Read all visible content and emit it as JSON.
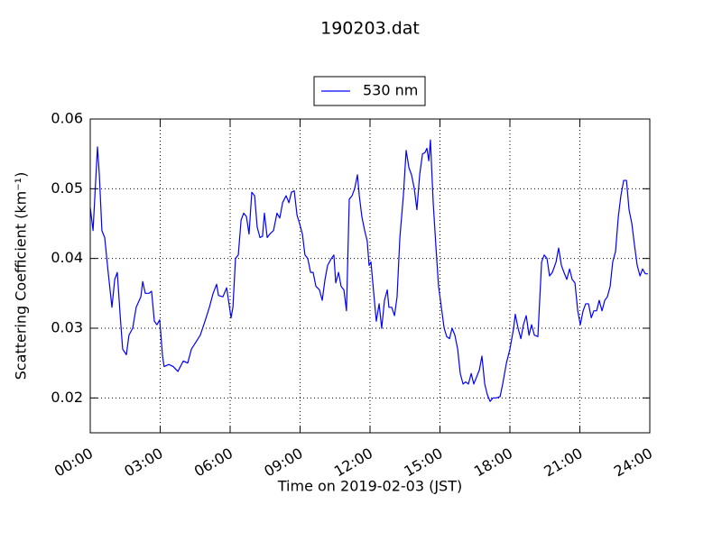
{
  "chart_data": {
    "type": "line",
    "title": "190203.dat",
    "x_label": "Time on 2019-02-03 (JST)",
    "y_label": "Scattering Coefficient (km⁻¹)",
    "x": [
      0,
      0.12,
      0.31,
      0.39,
      0.5,
      0.62,
      0.77,
      0.93,
      1.05,
      1.16,
      1.28,
      1.39,
      1.55,
      1.66,
      1.82,
      1.97,
      2.17,
      2.25,
      2.36,
      2.52,
      2.63,
      2.75,
      2.86,
      2.98,
      3.1,
      3.17,
      3.37,
      3.56,
      3.76,
      3.99,
      4.18,
      4.34,
      4.53,
      4.72,
      4.92,
      5.11,
      5.27,
      5.42,
      5.5,
      5.69,
      5.85,
      6.04,
      6.12,
      6.23,
      6.35,
      6.47,
      6.58,
      6.7,
      6.81,
      6.93,
      7.05,
      7.16,
      7.28,
      7.39,
      7.47,
      7.59,
      7.7,
      7.86,
      8.01,
      8.13,
      8.25,
      8.4,
      8.52,
      8.63,
      8.75,
      8.87,
      8.98,
      9.1,
      9.21,
      9.33,
      9.45,
      9.56,
      9.68,
      9.83,
      9.95,
      10.07,
      10.18,
      10.34,
      10.45,
      10.53,
      10.65,
      10.76,
      10.88,
      10.99,
      11.11,
      11.23,
      11.34,
      11.46,
      11.54,
      11.65,
      11.77,
      11.88,
      11.96,
      12.04,
      12.16,
      12.27,
      12.39,
      12.5,
      12.62,
      12.74,
      12.81,
      12.93,
      13.05,
      13.16,
      13.28,
      13.43,
      13.55,
      13.67,
      13.78,
      13.9,
      14.01,
      14.13,
      14.25,
      14.36,
      14.44,
      14.52,
      14.59,
      14.71,
      14.83,
      14.94,
      15.06,
      15.18,
      15.29,
      15.41,
      15.52,
      15.64,
      15.76,
      15.87,
      15.99,
      16.1,
      16.22,
      16.34,
      16.45,
      16.57,
      16.69,
      16.8,
      16.92,
      17.03,
      17.15,
      17.27,
      17.42,
      17.58,
      17.69,
      17.85,
      18.0,
      18.16,
      18.23,
      18.35,
      18.47,
      18.58,
      18.7,
      18.82,
      18.93,
      19.05,
      19.2,
      19.36,
      19.47,
      19.59,
      19.7,
      19.82,
      19.98,
      20.09,
      20.21,
      20.32,
      20.44,
      20.56,
      20.67,
      20.79,
      20.91,
      21.02,
      21.14,
      21.25,
      21.37,
      21.49,
      21.6,
      21.72,
      21.83,
      21.95,
      22.07,
      22.18,
      22.3,
      22.41,
      22.53,
      22.65,
      22.76,
      22.88,
      23.0,
      23.11,
      23.23,
      23.34,
      23.46,
      23.58,
      23.69,
      23.81,
      23.92
    ],
    "series": [
      {
        "name": "530 nm",
        "color": "#0000ff",
        "values": [
          0.0473,
          0.044,
          0.056,
          0.052,
          0.044,
          0.043,
          0.038,
          0.033,
          0.037,
          0.038,
          0.032,
          0.027,
          0.0262,
          0.029,
          0.03,
          0.033,
          0.0345,
          0.0367,
          0.035,
          0.035,
          0.0353,
          0.031,
          0.0305,
          0.0312,
          0.026,
          0.0245,
          0.0248,
          0.0245,
          0.0238,
          0.0253,
          0.025,
          0.027,
          0.028,
          0.029,
          0.031,
          0.033,
          0.035,
          0.0363,
          0.0347,
          0.0345,
          0.0358,
          0.0315,
          0.033,
          0.04,
          0.0405,
          0.0455,
          0.0465,
          0.046,
          0.0435,
          0.0495,
          0.049,
          0.0445,
          0.043,
          0.0432,
          0.0465,
          0.043,
          0.0435,
          0.044,
          0.0465,
          0.0458,
          0.048,
          0.049,
          0.048,
          0.0495,
          0.0497,
          0.0462,
          0.045,
          0.0435,
          0.0405,
          0.04,
          0.038,
          0.038,
          0.036,
          0.0355,
          0.034,
          0.037,
          0.039,
          0.04,
          0.0405,
          0.0365,
          0.038,
          0.036,
          0.0355,
          0.0325,
          0.0485,
          0.049,
          0.05,
          0.052,
          0.049,
          0.046,
          0.044,
          0.0425,
          0.039,
          0.0395,
          0.035,
          0.031,
          0.0335,
          0.03,
          0.034,
          0.0355,
          0.033,
          0.033,
          0.0318,
          0.0345,
          0.043,
          0.049,
          0.0555,
          0.053,
          0.052,
          0.05,
          0.047,
          0.052,
          0.055,
          0.0552,
          0.0558,
          0.054,
          0.057,
          0.048,
          0.0415,
          0.036,
          0.033,
          0.03,
          0.0288,
          0.0285,
          0.03,
          0.029,
          0.027,
          0.0235,
          0.022,
          0.0223,
          0.022,
          0.0235,
          0.022,
          0.023,
          0.024,
          0.026,
          0.022,
          0.0205,
          0.0195,
          0.02,
          0.02,
          0.0202,
          0.022,
          0.025,
          0.027,
          0.03,
          0.032,
          0.03,
          0.0285,
          0.0305,
          0.0318,
          0.029,
          0.0305,
          0.029,
          0.0288,
          0.0395,
          0.0405,
          0.04,
          0.0375,
          0.038,
          0.0395,
          0.0415,
          0.039,
          0.038,
          0.037,
          0.0385,
          0.037,
          0.0365,
          0.0325,
          0.0305,
          0.0325,
          0.0335,
          0.0335,
          0.0315,
          0.0325,
          0.0325,
          0.034,
          0.0325,
          0.034,
          0.0345,
          0.036,
          0.0395,
          0.041,
          0.046,
          0.049,
          0.0512,
          0.0512,
          0.047,
          0.045,
          0.042,
          0.039,
          0.0375,
          0.0385,
          0.0378,
          0.0378
        ]
      }
    ],
    "xlim": [
      0,
      24
    ],
    "xticks": [
      {
        "value": 0,
        "label": "00:00"
      },
      {
        "value": 3,
        "label": "03:00"
      },
      {
        "value": 6,
        "label": "06:00"
      },
      {
        "value": 9,
        "label": "09:00"
      },
      {
        "value": 12,
        "label": "12:00"
      },
      {
        "value": 15,
        "label": "15:00"
      },
      {
        "value": 18,
        "label": "18:00"
      },
      {
        "value": 21,
        "label": "21:00"
      },
      {
        "value": 24,
        "label": "24:00"
      }
    ],
    "ylim": [
      0.015,
      0.06
    ],
    "yticks": [
      0.02,
      0.03,
      0.04,
      0.05,
      0.06
    ],
    "grid": true,
    "legend": "top"
  }
}
